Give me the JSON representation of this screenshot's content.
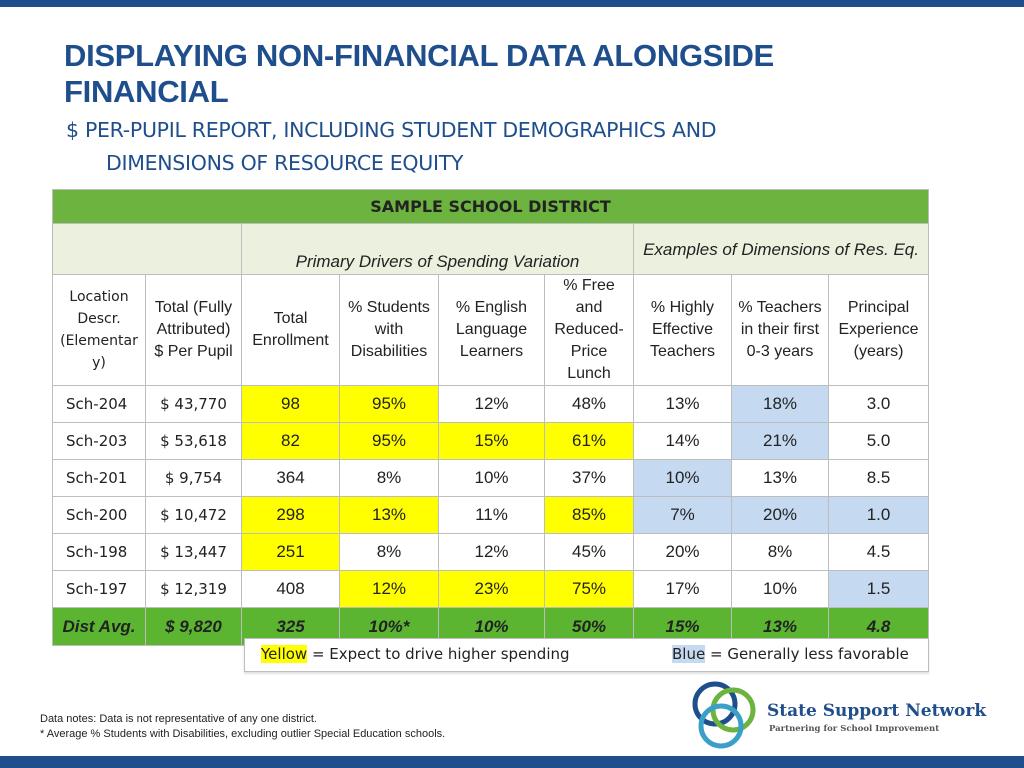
{
  "title": "DISPLAYING NON-FINANCIAL DATA ALONGSIDE FINANCIAL",
  "subtitle_line1": "$ Per-Pupil Report, Including Student Demographics and",
  "subtitle_line2": "Dimensions of Resource Equity",
  "table": {
    "district_label": "SAMPLE SCHOOL DISTRICT",
    "group_primary": "Primary Drivers of Spending Variation",
    "group_examples": "Examples of Dimensions of Res. Eq.",
    "headers": {
      "location": [
        "Location",
        "Descr.",
        "(Elementar",
        "y)"
      ],
      "total_pp": [
        "Total (Fully",
        "Attributed)",
        "$ Per Pupil"
      ],
      "enrollment": [
        "Total",
        "Enrollment"
      ],
      "swd": [
        "% Students",
        "with",
        "Disabilities"
      ],
      "ell": [
        "% English",
        "Language",
        "Learners"
      ],
      "frl": [
        "% Free",
        "and",
        "Reduced-",
        "Price",
        "Lunch"
      ],
      "het": [
        "% Highly",
        "Effective",
        "Teachers"
      ],
      "new_teachers": [
        "% Teachers",
        "in their first",
        "0-3 years"
      ],
      "principal": [
        "Principal",
        "Experience",
        "(years)"
      ]
    },
    "rows": [
      {
        "name": "Sch-204",
        "amount": "$ 43,770",
        "enroll": "98",
        "swd": "95%",
        "ell": "12%",
        "frl": "48%",
        "het": "13%",
        "new": "18%",
        "prin": "3.0"
      },
      {
        "name": "Sch-203",
        "amount": "$ 53,618",
        "enroll": "82",
        "swd": "95%",
        "ell": "15%",
        "frl": "61%",
        "het": "14%",
        "new": "21%",
        "prin": "5.0"
      },
      {
        "name": "Sch-201",
        "amount": "$ 9,754",
        "enroll": "364",
        "swd": "8%",
        "ell": "10%",
        "frl": "37%",
        "het": "10%",
        "new": "13%",
        "prin": "8.5"
      },
      {
        "name": "Sch-200",
        "amount": "$ 10,472",
        "enroll": "298",
        "swd": "13%",
        "ell": "11%",
        "frl": "85%",
        "het": "7%",
        "new": "20%",
        "prin": "1.0"
      },
      {
        "name": "Sch-198",
        "amount": "$  13,447",
        "enroll": "251",
        "swd": "8%",
        "ell": "12%",
        "frl": "45%",
        "het": "20%",
        "new": "8%",
        "prin": "4.5"
      },
      {
        "name": "Sch-197",
        "amount": "$ 12,319",
        "enroll": "408",
        "swd": "12%",
        "ell": "23%",
        "frl": "75%",
        "het": "17%",
        "new": "10%",
        "prin": "1.5"
      }
    ],
    "average": {
      "name": "Dist Avg.",
      "amount": "$ 9,820",
      "enroll": "325",
      "swd": "10%*",
      "ell": "10%",
      "frl": "50%",
      "het": "15%",
      "new": "13%",
      "prin": "4.8"
    }
  },
  "highlights": {
    "yellow": [
      "0.enroll",
      "0.swd",
      "1.enroll",
      "1.swd",
      "1.ell",
      "1.frl",
      "3.enroll",
      "3.swd",
      "3.frl",
      "4.enroll",
      "5.swd",
      "5.ell",
      "5.frl"
    ],
    "blue": [
      "0.new",
      "1.new",
      "2.het",
      "3.het",
      "3.new",
      "3.prin",
      "5.prin"
    ]
  },
  "legend": {
    "yellow_word": "Yellow",
    "yellow_text": "= Expect to drive higher spending",
    "blue_word": "Blue",
    "blue_text": "= Generally less favorable"
  },
  "notes": [
    "Data notes: Data is not representative of any one district.",
    "* Average % Students with Disabilities, excluding outlier Special Education schools."
  ],
  "logo": {
    "title": "State Support Network",
    "tagline": "Partnering for School Improvement"
  },
  "colors": {
    "brand_blue": "#1f4e8c",
    "green_header": "#6db33f",
    "green_avg": "#5cb531",
    "highlight_yellow": "#ffff00",
    "highlight_blue": "#c5d9f1",
    "group_fill": "#ebf1de"
  }
}
